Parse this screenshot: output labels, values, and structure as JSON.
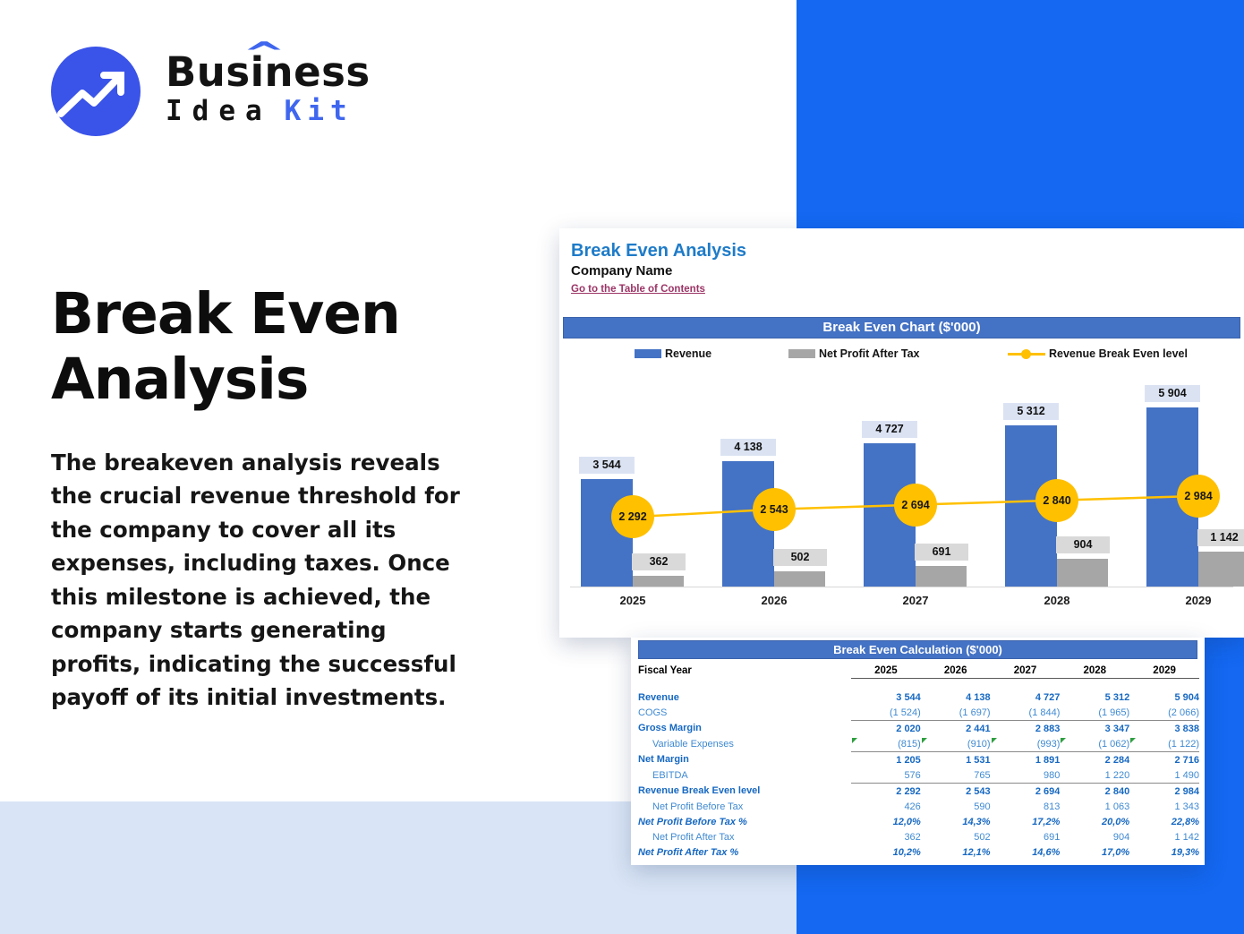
{
  "brand": {
    "word": "Business",
    "caret": "^",
    "sub_black": "Idea",
    "sub_blue": "Kit"
  },
  "hero": {
    "title_line1": "Break Even",
    "title_line2": "Analysis",
    "description": "The breakeven analysis reveals the crucial revenue threshold for the company to cover all its expenses, including taxes. Once this milestone is achieved, the company starts generating profits, indicating the successful payoff of its initial investments."
  },
  "sheet": {
    "title": "Break Even Analysis",
    "company": "Company Name",
    "link": "Go to the Table of Contents",
    "chart_header": "Break Even Chart ($'000)",
    "table_header": "Break Even Calculation ($'000)"
  },
  "colors": {
    "accent_blue_block": "#1468f1",
    "light_blue_band": "#d9e5f6",
    "excel_header": "#4472c4",
    "bar_blue": "#4472c4",
    "bar_gray": "#a6a6a6",
    "line_yellow": "#ffc000",
    "table_bold_text": "#1668c2",
    "table_plain_text": "#3f8ad2",
    "link_color": "#9c3566",
    "title_color": "#1e7bc8"
  },
  "chart_data": {
    "type": "bar",
    "categories": [
      "2025",
      "2026",
      "2027",
      "2028",
      "2029"
    ],
    "series": [
      {
        "name": "Revenue",
        "type": "bar",
        "color": "#4472c4",
        "values": [
          3544,
          4138,
          4727,
          5312,
          5904
        ],
        "labels": [
          "3 544",
          "4 138",
          "4 727",
          "5 312",
          "5 904"
        ]
      },
      {
        "name": "Net Profit After Tax",
        "type": "bar",
        "color": "#a6a6a6",
        "values": [
          362,
          502,
          691,
          904,
          1142
        ],
        "labels": [
          "362",
          "502",
          "691",
          "904",
          "1 142"
        ]
      },
      {
        "name": "Revenue Break Even level",
        "type": "line",
        "color": "#ffc000",
        "values": [
          2292,
          2543,
          2694,
          2840,
          2984
        ],
        "labels": [
          "2 292",
          "2 543",
          "2 694",
          "2 840",
          "2 984"
        ]
      }
    ],
    "title": "Break Even Chart ($'000)",
    "xlabel": "",
    "ylabel": "",
    "ylim": [
      0,
      6200
    ],
    "grid": false,
    "legend_position": "top"
  },
  "table": {
    "fiscal_year_label": "Fiscal Year",
    "years": [
      "2025",
      "2026",
      "2027",
      "2028",
      "2029"
    ],
    "rows": [
      {
        "label": "Revenue",
        "cls": "bold",
        "values": [
          "3 544",
          "4 138",
          "4 727",
          "5 312",
          "5 904"
        ]
      },
      {
        "label": "COGS",
        "cls": "plain",
        "values": [
          "(1 524)",
          "(1 697)",
          "(1 844)",
          "(1 965)",
          "(2 066)"
        ]
      },
      {
        "label": "Gross Margin",
        "cls": "bold",
        "topline": true,
        "values": [
          "2 020",
          "2 441",
          "2 883",
          "3 347",
          "3 838"
        ]
      },
      {
        "label": "Variable Expenses",
        "cls": "plain",
        "indent": true,
        "flags": true,
        "values": [
          "(815)",
          "(910)",
          "(993)",
          "(1 062)",
          "(1 122)"
        ]
      },
      {
        "label": "Net Margin",
        "cls": "bold",
        "topline": true,
        "values": [
          "1 205",
          "1 531",
          "1 891",
          "2 284",
          "2 716"
        ]
      },
      {
        "label": "EBITDA",
        "cls": "plain",
        "indent": true,
        "values": [
          "576",
          "765",
          "980",
          "1 220",
          "1 490"
        ]
      },
      {
        "label": "Revenue Break Even level",
        "cls": "bold",
        "topline": true,
        "values": [
          "2 292",
          "2 543",
          "2 694",
          "2 840",
          "2 984"
        ]
      },
      {
        "label": "Net Profit Before Tax",
        "cls": "plain",
        "indent": true,
        "values": [
          "426",
          "590",
          "813",
          "1 063",
          "1 343"
        ]
      },
      {
        "label": "Net Profit Before Tax %",
        "cls": "pct",
        "values": [
          "12,0%",
          "14,3%",
          "17,2%",
          "20,0%",
          "22,8%"
        ]
      },
      {
        "label": "Net Profit After Tax",
        "cls": "plain",
        "indent": true,
        "values": [
          "362",
          "502",
          "691",
          "904",
          "1 142"
        ]
      },
      {
        "label": "Net Profit After Tax %",
        "cls": "pct",
        "values": [
          "10,2%",
          "12,1%",
          "14,6%",
          "17,0%",
          "19,3%"
        ]
      }
    ]
  }
}
